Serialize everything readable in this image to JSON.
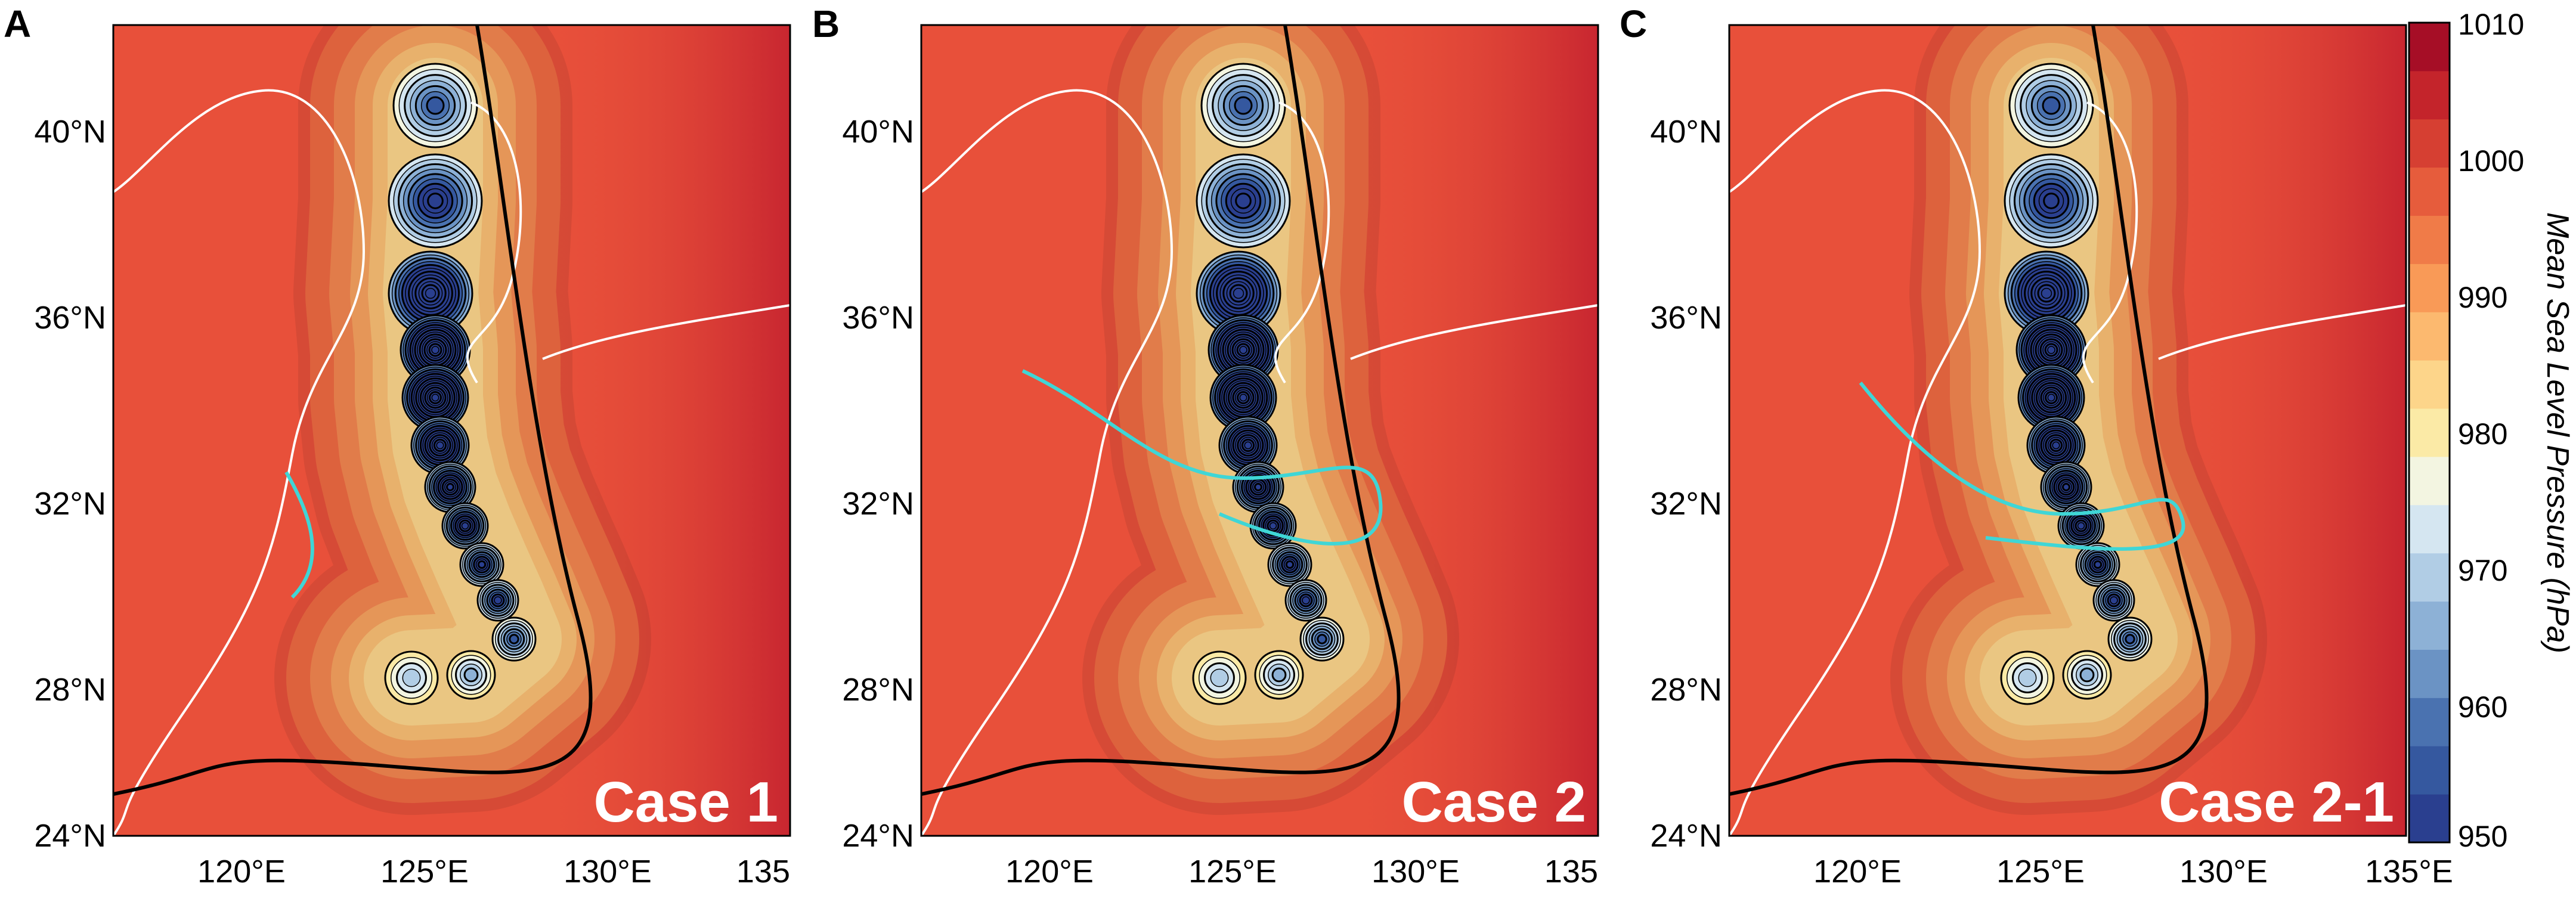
{
  "panels": [
    {
      "letter": "A",
      "case_label": "Case 1"
    },
    {
      "letter": "B",
      "case_label": "Case 2"
    },
    {
      "letter": "C",
      "case_label": "Case 2-1"
    }
  ],
  "axes": {
    "lat_labels": [
      "40°N",
      "36°N",
      "32°N",
      "28°N",
      "24°N"
    ],
    "lat_values": [
      40,
      36,
      32,
      28,
      24
    ],
    "lon_labels_ab": [
      "120°E",
      "125°E",
      "130°E",
      "135"
    ],
    "lon_labels_c": [
      "120°E",
      "125°E",
      "130°E",
      "135°E"
    ],
    "lon_values": [
      120,
      125,
      130,
      135
    ],
    "lon_range": [
      116.5,
      135
    ],
    "lat_range": [
      24,
      42
    ]
  },
  "colorbar": {
    "title": "Mean Sea Level Pressure (hPa)",
    "ticks": [
      "1010",
      "1000",
      "990",
      "980",
      "970",
      "960",
      "950"
    ],
    "tick_values": [
      1010,
      1000,
      990,
      980,
      970,
      960,
      950
    ],
    "range": [
      950,
      1010
    ],
    "colors": [
      "#2a3f8f",
      "#35589f",
      "#4a72b0",
      "#6b93c4",
      "#8db1d6",
      "#b1cde5",
      "#d5e6f1",
      "#f3f5e1",
      "#fbeaa6",
      "#fdd58a",
      "#fcb96f",
      "#f99a57",
      "#f07b48",
      "#e65c3c",
      "#d63f32",
      "#c4242b",
      "#a60e26"
    ]
  },
  "colors": {
    "background_field": "#e8503a",
    "far_field": "#cc2430",
    "coastline": "#ffffff",
    "cyan_contour": "#3fd6d6",
    "isobar": "#000000"
  }
}
